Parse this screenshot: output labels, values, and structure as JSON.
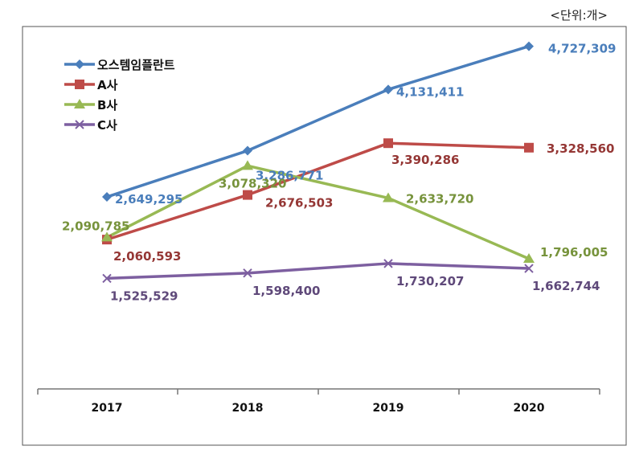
{
  "unit_label": "<단위:개>",
  "chart_data": {
    "type": "line",
    "categories": [
      "2017",
      "2018",
      "2019",
      "2020"
    ],
    "series": [
      {
        "name": "오스템임플란트",
        "values": [
          2649295,
          3286771,
          4131411,
          4727309
        ],
        "color": "#4A7EBB",
        "marker": "diamond"
      },
      {
        "name": "A사",
        "values": [
          2060593,
          2676503,
          3390286,
          3328560
        ],
        "color": "#BE4B48",
        "marker": "square"
      },
      {
        "name": "B사",
        "values": [
          2090785,
          3078320,
          2633720,
          1796005
        ],
        "color": "#98B954",
        "marker": "triangle"
      },
      {
        "name": "C사",
        "values": [
          1525529,
          1598400,
          1730207,
          1662744
        ],
        "color": "#7D5FA0",
        "marker": "x"
      }
    ],
    "data_labels": [
      [
        "2,649,295",
        "3,286,771",
        "4,131,411",
        "4,727,309"
      ],
      [
        "2,060,593",
        "2,676,503",
        "3,390,286",
        "3,328,560"
      ],
      [
        "2,090,785",
        "3,078,320",
        "2,633,720",
        "1,796,005"
      ],
      [
        "1,525,529",
        "1,598,400",
        "1,730,207",
        "1,662,744"
      ]
    ],
    "label_colors": [
      "#4A7EBB",
      "#953735",
      "#77933C",
      "#5F497A"
    ],
    "ylim": [
      0,
      5000000
    ],
    "grid": false,
    "legend": "top-left"
  }
}
